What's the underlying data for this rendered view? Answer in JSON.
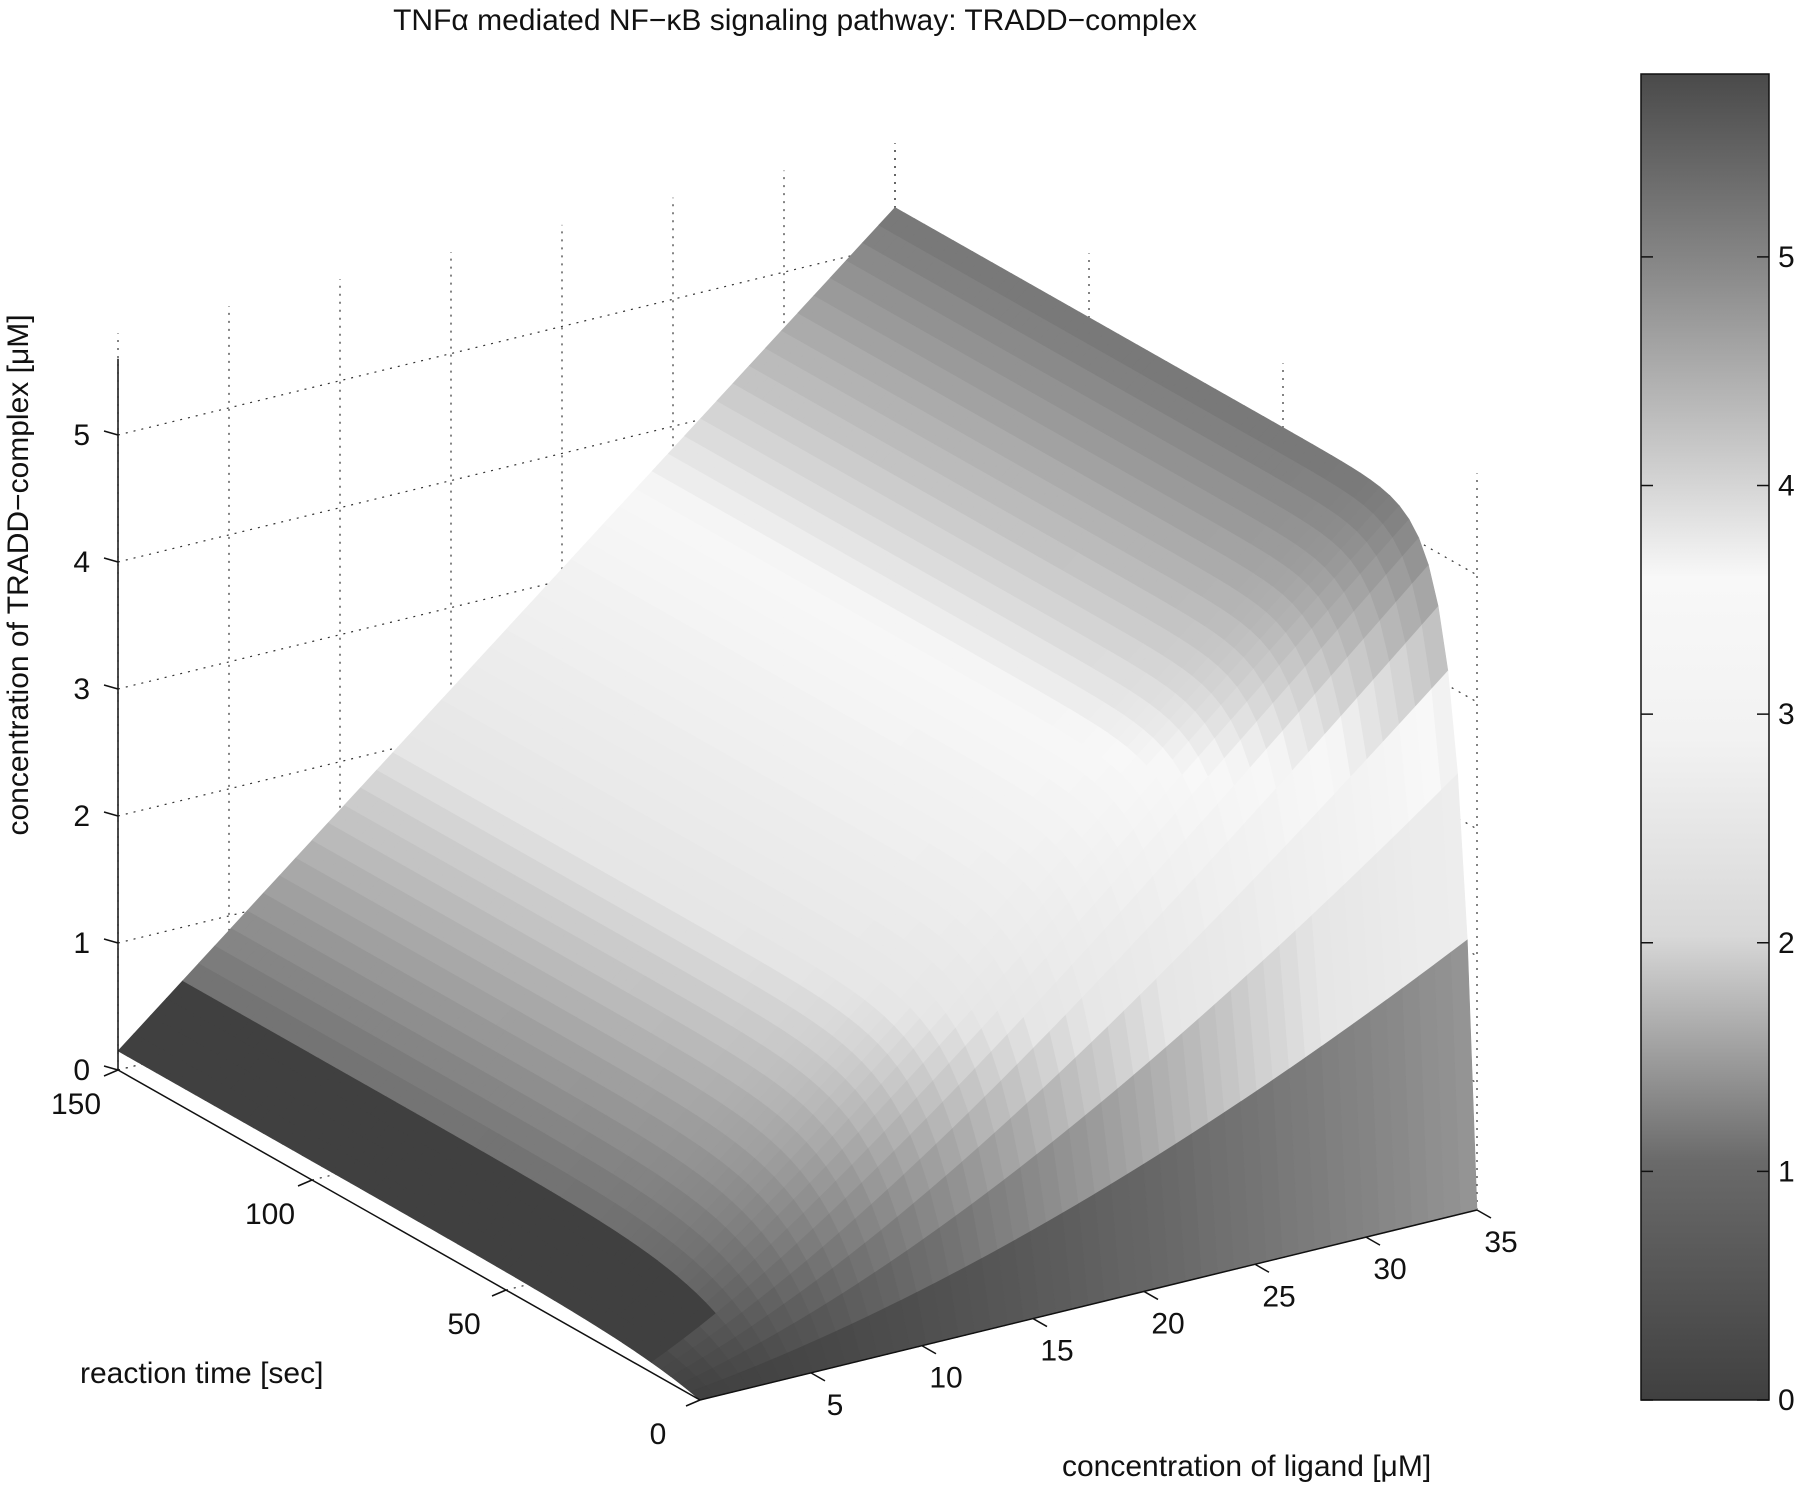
{
  "chart_data": {
    "type": "surface3d",
    "title": "TNFα mediated NF−κB signaling pathway: TRADD−complex",
    "xlabel": "concentration of ligand [μM]",
    "ylabel": "reaction time [sec]",
    "zlabel": "concentration of TRADD−complex [μM]",
    "x_ticks": [
      "5",
      "10",
      "15",
      "20",
      "25",
      "30",
      "35"
    ],
    "x_tick_values": [
      5,
      10,
      15,
      20,
      25,
      30,
      35
    ],
    "y_ticks": [
      "0",
      "50",
      "100",
      "150"
    ],
    "y_tick_values": [
      0,
      50,
      100,
      150
    ],
    "z_ticks": [
      "0",
      "1",
      "2",
      "3",
      "4",
      "5"
    ],
    "z_tick_values": [
      0,
      1,
      2,
      3,
      4,
      5
    ],
    "xlim": [
      0,
      35
    ],
    "ylim": [
      0,
      150
    ],
    "zlim": [
      0,
      5.6
    ],
    "grid": true,
    "colormap": "gray",
    "colorbar": {
      "ticks": [
        "0",
        "1",
        "2",
        "3",
        "4",
        "5"
      ],
      "tick_values": [
        0,
        1,
        2,
        3,
        4,
        5
      ],
      "range": [
        0,
        5.8
      ],
      "placement": "right"
    },
    "surface_sample": {
      "x": [
        0,
        5,
        10,
        15,
        20,
        25,
        30,
        35
      ],
      "z_at_t150": [
        0.15,
        0.7,
        1.4,
        2.2,
        3.0,
        3.8,
        4.6,
        5.3
      ],
      "note_shape": "z rises with ligand concentration and saturates after a short initial transient in reaction time"
    }
  }
}
